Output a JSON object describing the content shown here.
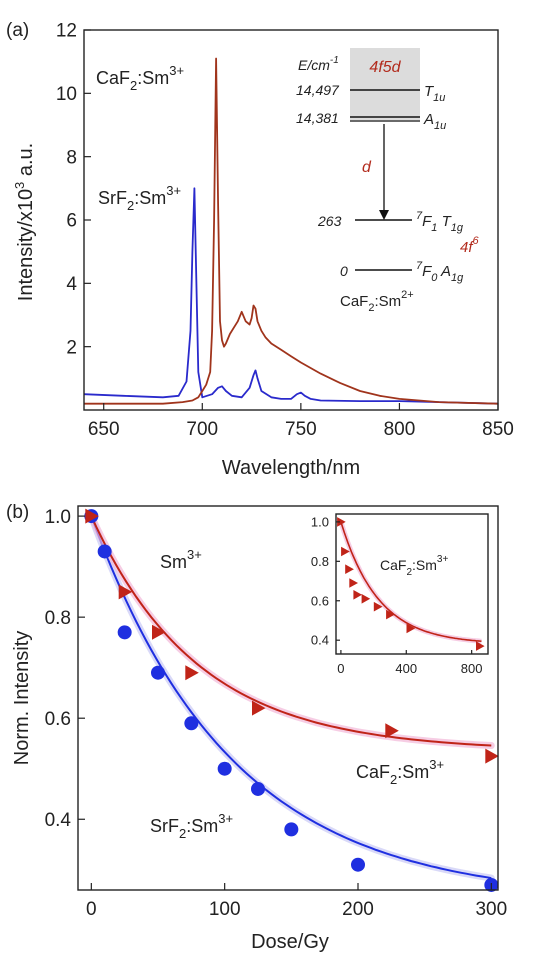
{
  "chart_data": [
    {
      "panel": "(a)",
      "type": "line",
      "xlabel": "Wavelength/nm",
      "ylabel": "Intensity/x10",
      "ylabel_sup": "3",
      "ylabel_unit": " a.u.",
      "xlim": [
        640,
        850
      ],
      "ylim": [
        0,
        12
      ],
      "xticks": [
        650,
        700,
        750,
        800,
        850
      ],
      "yticks": [
        2,
        4,
        6,
        8,
        10,
        12
      ],
      "series": [
        {
          "name": "CaF2:Sm3+",
          "label_main": "CaF",
          "label_sub": "2",
          "label_tail": ":Sm",
          "label_sup": "3+",
          "color": "#a0341c",
          "x": [
            640,
            660,
            680,
            690,
            695,
            698,
            700,
            702,
            704,
            705,
            706,
            707,
            708,
            709,
            710,
            711,
            712,
            714,
            716,
            718,
            720,
            722,
            724,
            725,
            726,
            727,
            728,
            730,
            732,
            735,
            740,
            745,
            750,
            760,
            770,
            780,
            790,
            800,
            820,
            850
          ],
          "y": [
            0.2,
            0.2,
            0.2,
            0.25,
            0.3,
            0.4,
            0.6,
            0.8,
            1.2,
            2.5,
            6.0,
            11.1,
            6.5,
            2.8,
            2.2,
            2.0,
            2.1,
            2.4,
            2.6,
            2.8,
            3.1,
            2.8,
            2.7,
            2.9,
            3.3,
            3.2,
            2.8,
            2.5,
            2.3,
            2.1,
            1.9,
            1.7,
            1.5,
            1.15,
            0.85,
            0.6,
            0.45,
            0.35,
            0.25,
            0.2
          ]
        },
        {
          "name": "SrF2:Sm3+",
          "label_main": "SrF",
          "label_sub": "2",
          "label_tail": ":Sm",
          "label_sup": "3+",
          "color": "#2a2acc",
          "x": [
            640,
            660,
            680,
            688,
            692,
            694,
            695,
            696,
            697,
            698,
            700,
            705,
            708,
            710,
            712,
            715,
            720,
            724,
            726,
            727,
            728,
            730,
            735,
            740,
            745,
            748,
            750,
            752,
            755,
            760,
            780,
            800,
            820,
            850
          ],
          "y": [
            0.5,
            0.45,
            0.4,
            0.45,
            0.9,
            2.5,
            5.0,
            7.0,
            4.0,
            1.2,
            0.4,
            0.5,
            0.7,
            0.75,
            0.6,
            0.45,
            0.4,
            0.7,
            1.1,
            1.25,
            1.0,
            0.6,
            0.4,
            0.35,
            0.35,
            0.5,
            0.55,
            0.45,
            0.35,
            0.3,
            0.28,
            0.28,
            0.25,
            0.2
          ]
        }
      ],
      "inset": {
        "energy_unit_main": "E/cm",
        "energy_unit_sup": "-1",
        "band_label": "4f5d",
        "levels": [
          {
            "energy": "14,497",
            "state_main": "T",
            "state_sub": "1u"
          },
          {
            "energy": "14,381",
            "state_main": "A",
            "state_sub": "1u"
          },
          {
            "energy": "263",
            "state_pre": "7",
            "state_main": "F",
            "state_sub": "1",
            "state_main2": " T",
            "state_sub2": "1g"
          },
          {
            "energy": "0",
            "state_pre": "7",
            "state_main": "F",
            "state_sub": "0",
            "state_main2": " A",
            "state_sub2": "1g"
          }
        ],
        "transition_label": "d",
        "config_main": "4f",
        "config_sup": "6",
        "ion_main": "CaF",
        "ion_sub": "2",
        "ion_tail": ":Sm",
        "ion_sup": "2+",
        "accent_color": "#b22a1c"
      }
    },
    {
      "panel": "(b)",
      "type": "scatter",
      "xlabel": "Dose/Gy",
      "ylabel": "Norm. Intensity",
      "xlim": [
        -10,
        305
      ],
      "ylim": [
        0.26,
        1.02
      ],
      "xticks": [
        0,
        100,
        200,
        300
      ],
      "yticks": [
        0.4,
        0.6,
        0.8,
        1.0
      ],
      "ytick_labels": [
        "0.4",
        "0.6",
        "0.8",
        "1.0"
      ],
      "series": [
        {
          "name": "SrF2:Sm3+",
          "label_main": "SrF",
          "label_sub": "2",
          "label_tail": ":Sm",
          "label_sup": "3+",
          "marker": "circle",
          "color": "#1f2fe0",
          "x": [
            0,
            10,
            25,
            50,
            75,
            100,
            125,
            150,
            200,
            300
          ],
          "y": [
            1.0,
            0.93,
            0.77,
            0.69,
            0.59,
            0.5,
            0.46,
            0.38,
            0.31,
            0.27
          ],
          "fit": {
            "a": 0.24,
            "b": 0.76,
            "tau": 105
          }
        },
        {
          "name": "CaF2:Sm3+",
          "label_main": "CaF",
          "label_sub": "2",
          "label_tail": ":Sm",
          "label_sup": "3+",
          "marker": "triangle-right",
          "color": "#c02418",
          "x": [
            0,
            25,
            50,
            75,
            125,
            225,
            300
          ],
          "y": [
            1.0,
            0.85,
            0.77,
            0.69,
            0.62,
            0.575,
            0.525
          ],
          "fit": {
            "a": 0.535,
            "b": 0.465,
            "tau": 80
          }
        }
      ],
      "annotation": {
        "main": "Sm",
        "sup": "3+"
      },
      "inset": {
        "xlim": [
          -30,
          900
        ],
        "ylim": [
          0.33,
          1.04
        ],
        "xticks": [
          0,
          400,
          800
        ],
        "yticks": [
          0.4,
          0.6,
          0.8,
          1.0
        ],
        "ytick_labels": [
          "0.4",
          "0.6",
          "0.8",
          "1.0"
        ],
        "label_main": "CaF",
        "label_sub": "2",
        "label_tail": ":Sm",
        "label_sup": "3+",
        "marker": "triangle-right",
        "color": "#c02418",
        "x": [
          0,
          25,
          50,
          75,
          100,
          150,
          225,
          300,
          425,
          850
        ],
        "y": [
          1.0,
          0.85,
          0.76,
          0.69,
          0.63,
          0.61,
          0.57,
          0.53,
          0.46,
          0.37
        ],
        "fit": {
          "a": 0.38,
          "b": 0.62,
          "tau": 230
        }
      }
    }
  ]
}
